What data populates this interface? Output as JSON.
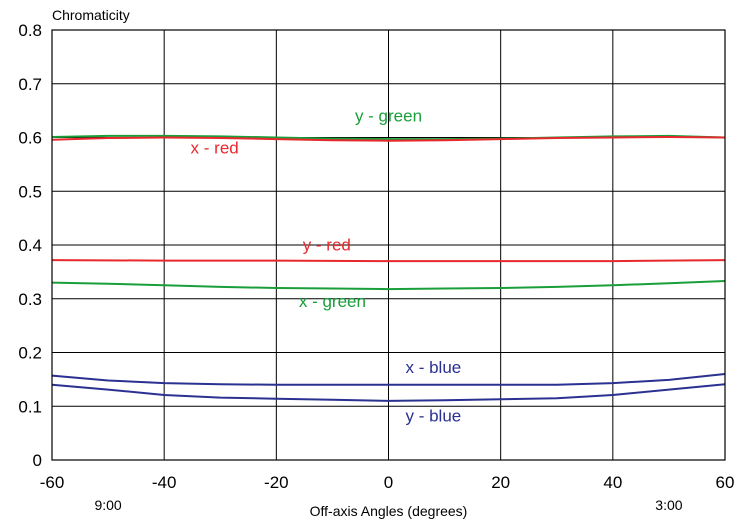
{
  "chart_data": {
    "type": "line",
    "ylabel": "Chromaticity",
    "xlabel": "Off-axis Angles (degrees)",
    "xlim": [
      -60,
      60
    ],
    "ylim": [
      0,
      0.8
    ],
    "x_ticks": [
      "-60",
      "-40",
      "-20",
      "0",
      "20",
      "40",
      "60"
    ],
    "y_ticks": [
      "0",
      "0.1",
      "0.2",
      "0.3",
      "0.4",
      "0.5",
      "0.6",
      "0.7",
      "0.8"
    ],
    "grid": true,
    "clock_labels": [
      {
        "x": -50,
        "text": "9:00"
      },
      {
        "x": 50,
        "text": "3:00"
      }
    ],
    "series": [
      {
        "name": "y - green",
        "color": "#1a9e3a",
        "x": [
          -60,
          -50,
          -40,
          -30,
          -20,
          -10,
          0,
          10,
          20,
          30,
          40,
          50,
          60
        ],
        "y": [
          0.601,
          0.603,
          0.603,
          0.602,
          0.6,
          0.598,
          0.597,
          0.597,
          0.598,
          0.6,
          0.602,
          0.603,
          0.6
        ],
        "label_pos": [
          0,
          0.63
        ]
      },
      {
        "name": "x - red",
        "color": "#e8282d",
        "x": [
          -60,
          -50,
          -40,
          -30,
          -20,
          -10,
          0,
          10,
          20,
          30,
          40,
          50,
          60
        ],
        "y": [
          0.596,
          0.599,
          0.6,
          0.599,
          0.597,
          0.595,
          0.594,
          0.595,
          0.597,
          0.599,
          0.6,
          0.601,
          0.6
        ],
        "label_pos": [
          -31,
          0.57
        ]
      },
      {
        "name": "y - red",
        "color": "#e8282d",
        "x": [
          -60,
          -40,
          -20,
          0,
          20,
          40,
          60
        ],
        "y": [
          0.372,
          0.371,
          0.371,
          0.37,
          0.37,
          0.37,
          0.372
        ],
        "label_pos": [
          -11,
          0.39
        ]
      },
      {
        "name": "x - green",
        "color": "#1a9e3a",
        "x": [
          -60,
          -50,
          -40,
          -30,
          -20,
          -10,
          0,
          10,
          20,
          30,
          40,
          50,
          60
        ],
        "y": [
          0.33,
          0.328,
          0.325,
          0.322,
          0.32,
          0.319,
          0.318,
          0.319,
          0.32,
          0.322,
          0.325,
          0.329,
          0.333
        ],
        "label_pos": [
          -10,
          0.285
        ]
      },
      {
        "name": "x - blue",
        "color": "#2b3190",
        "x": [
          -60,
          -50,
          -40,
          -30,
          -20,
          -10,
          0,
          10,
          20,
          30,
          40,
          50,
          60
        ],
        "y": [
          0.157,
          0.148,
          0.143,
          0.141,
          0.14,
          0.14,
          0.14,
          0.14,
          0.14,
          0.14,
          0.143,
          0.149,
          0.16
        ],
        "label_pos": [
          8,
          0.162
        ]
      },
      {
        "name": "y - blue",
        "color": "#2b3190",
        "x": [
          -60,
          -50,
          -40,
          -30,
          -20,
          -10,
          0,
          10,
          20,
          30,
          40,
          50,
          60
        ],
        "y": [
          0.14,
          0.131,
          0.121,
          0.116,
          0.114,
          0.112,
          0.11,
          0.111,
          0.113,
          0.115,
          0.121,
          0.131,
          0.141
        ],
        "label_pos": [
          8,
          0.072
        ]
      }
    ]
  }
}
